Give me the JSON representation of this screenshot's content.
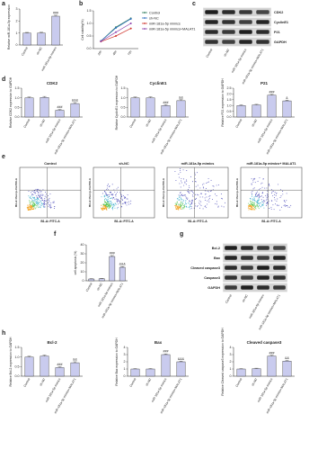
{
  "panel_labels": [
    "a",
    "b",
    "c",
    "d",
    "e",
    "f",
    "g",
    "h"
  ],
  "chart_data": [
    {
      "type": "bar",
      "ylabel": "Relative miR-181a-5p expression",
      "categories": [
        "Control",
        "sh-NC",
        "miR-181a-5p mimics"
      ],
      "values": [
        1,
        1,
        2.4
      ],
      "errors": [
        0.05,
        0.06,
        0.08
      ],
      "annotations": [
        null,
        null,
        "###"
      ],
      "ylim": [
        0,
        3
      ],
      "yticks": [
        0,
        1,
        2,
        3
      ],
      "color": "#c9cbee"
    },
    {
      "type": "line",
      "ylabel": "Cell viability(%)",
      "categories": [
        "24h",
        "48h",
        "72h"
      ],
      "series": [
        {
          "name": "Control",
          "color": "#2e7d5b",
          "values": [
            0.3,
            0.85,
            1.2
          ]
        },
        {
          "name": "sh-NC",
          "color": "#2f6fc0",
          "values": [
            0.3,
            0.82,
            1.18
          ]
        },
        {
          "name": "miR-181a-5p mimics",
          "color": "#d0342c",
          "values": [
            0.28,
            0.5,
            0.8
          ]
        },
        {
          "name": "miR-181a-5p mimics+MALAT1",
          "color": "#8e44ad",
          "values": [
            0.29,
            0.65,
            1.0
          ]
        }
      ],
      "ylim": [
        0,
        1.5
      ],
      "yticks": [
        {
          "value": 0,
          "label": "0.0"
        },
        {
          "value": 0.5,
          "label": "0.5"
        },
        {
          "value": 1,
          "label": "1.0"
        },
        {
          "value": 1.5,
          "label": "1.5"
        }
      ]
    },
    {
      "type": "bar",
      "title": "CDK2",
      "ylabel": "Relative CDK2 expression to GAPDH",
      "categories": [
        "Control",
        "sh-NC",
        "miR-181a-5p mimics",
        "miR-181a-5p mimics+MALAT1"
      ],
      "values": [
        1,
        1.02,
        0.35,
        0.7
      ],
      "errors": [
        0.04,
        0.05,
        0.04,
        0.05
      ],
      "annotations": [
        null,
        null,
        "###",
        "&&&"
      ],
      "ylim": [
        0,
        1.5
      ],
      "yticks": [
        {
          "value": 0,
          "label": "0.0"
        },
        {
          "value": 0.5,
          "label": "0.5"
        },
        {
          "value": 1,
          "label": "1.0"
        },
        {
          "value": 1.5,
          "label": "1.5"
        }
      ],
      "color": "#c9cbee"
    },
    {
      "type": "bar",
      "title": "CyclinE1",
      "ylabel": "Relative CyclinE1 expression to GAPDH",
      "categories": [
        "Control",
        "sh-NC",
        "miR-181a-5p mimics",
        "miR-181a-5p mimics+MALAT1"
      ],
      "values": [
        1,
        1,
        0.6,
        0.85
      ],
      "errors": [
        0.04,
        0.05,
        0.04,
        0.05
      ],
      "annotations": [
        null,
        null,
        "###",
        "&&"
      ],
      "ylim": [
        0,
        1.5
      ],
      "yticks": [
        {
          "value": 0,
          "label": "0.0"
        },
        {
          "value": 0.5,
          "label": "0.5"
        },
        {
          "value": 1,
          "label": "1.0"
        },
        {
          "value": 1.5,
          "label": "1.5"
        }
      ],
      "color": "#c9cbee"
    },
    {
      "type": "bar",
      "title": "P21",
      "ylabel": "Relative P21 expression to GAPDH",
      "categories": [
        "Control",
        "sh-NC",
        "miR-181a-5p mimics",
        "miR-181a-5p mimics+MALAT1"
      ],
      "values": [
        1,
        1.05,
        1.9,
        1.4
      ],
      "errors": [
        0.05,
        0.05,
        0.06,
        0.06
      ],
      "annotations": [
        null,
        null,
        "###",
        "&"
      ],
      "ylim": [
        0,
        2.5
      ],
      "yticks": [
        {
          "value": 0,
          "label": "0.0"
        },
        {
          "value": 0.5,
          "label": "0.5"
        },
        {
          "value": 1,
          "label": "1.0"
        },
        {
          "value": 1.5,
          "label": "1.5"
        },
        {
          "value": 2,
          "label": "2.0"
        },
        {
          "value": 2.5,
          "label": "2.5"
        }
      ],
      "color": "#c9cbee"
    },
    {
      "type": "bar",
      "ylabel": "cell apoptosis (%)",
      "categories": [
        "Control",
        "sh-NC",
        "miR-181a-5p mimics",
        "miR-181a-5p mimics+MALAT1"
      ],
      "values": [
        2,
        2.2,
        27,
        15
      ],
      "errors": [
        0.4,
        0.4,
        1,
        0.8
      ],
      "annotations": [
        null,
        null,
        "###",
        "&&&"
      ],
      "ylim": [
        0,
        40
      ],
      "yticks": [
        0,
        10,
        20,
        30,
        40
      ],
      "color": "#c9cbee"
    },
    {
      "type": "bar",
      "title": "Bcl-2",
      "ylabel": "Relative Bcl-2 expression to GAPDH",
      "categories": [
        "Control",
        "sh-NC",
        "miR-181a-5p mimics",
        "miR-181a-5p mimics+MALAT1"
      ],
      "values": [
        1,
        1.05,
        0.45,
        0.7
      ],
      "errors": [
        0.04,
        0.05,
        0.04,
        0.05
      ],
      "annotations": [
        null,
        null,
        "###",
        "&&"
      ],
      "ylim": [
        0,
        1.5
      ],
      "yticks": [
        {
          "value": 0,
          "label": "0.0"
        },
        {
          "value": 0.5,
          "label": "0.5"
        },
        {
          "value": 1,
          "label": "1.0"
        },
        {
          "value": 1.5,
          "label": "1.5"
        }
      ],
      "color": "#c9cbee"
    },
    {
      "type": "bar",
      "title": "Bax",
      "ylabel": "Relative Bax expression to GAPDH",
      "categories": [
        "Control",
        "sh-NC",
        "miR-181a-5p mimics",
        "miR-181a-5p mimics+MALAT1"
      ],
      "values": [
        1,
        1,
        3,
        2
      ],
      "errors": [
        0.05,
        0.06,
        0.1,
        0.08
      ],
      "annotations": [
        null,
        null,
        "###",
        "&&&"
      ],
      "ylim": [
        0,
        4
      ],
      "yticks": [
        0,
        1,
        2,
        3,
        4
      ],
      "color": "#c9cbee"
    },
    {
      "type": "bar",
      "title": "Cleaved caspase3",
      "ylabel": "Relative Cleaved caspase3 expression to GAPDH",
      "categories": [
        "Control",
        "sh-NC",
        "miR-181a-5p mimics",
        "miR-181a-5p mimics+MALAT1"
      ],
      "values": [
        1,
        1.05,
        2.8,
        2.1
      ],
      "errors": [
        0.05,
        0.06,
        0.1,
        0.08
      ],
      "annotations": [
        null,
        null,
        "###",
        "&&"
      ],
      "ylim": [
        0,
        4
      ],
      "yticks": [
        0,
        1,
        2,
        3,
        4
      ],
      "color": "#c9cbee"
    }
  ],
  "blots": [
    {
      "rows": [
        "CDK2",
        "CyclinE1",
        "P21",
        "GAPDH"
      ],
      "columns": [
        "Control",
        "sh-NC",
        "miR-181a-5p mimics",
        "miR-181a-5p mimics+MALAT1"
      ]
    },
    {
      "rows": [
        "Bcl-2",
        "Bax",
        "Cleaved caspase3",
        "Caspase3",
        "GAPDH"
      ],
      "columns": [
        "Control",
        "sh-NC",
        "miR-181a-5p mimics",
        "miR-181a-5p mimics+MALAT1"
      ]
    }
  ],
  "flow": {
    "titles": [
      "Control",
      "sh-NC",
      "miR-181a-5p mimics",
      "miR-181a-5p mimics+ MALAT1"
    ],
    "xlabel": "B1-A::FITC-A",
    "ylabel": "B3-A::Percp-Vio700-A"
  }
}
